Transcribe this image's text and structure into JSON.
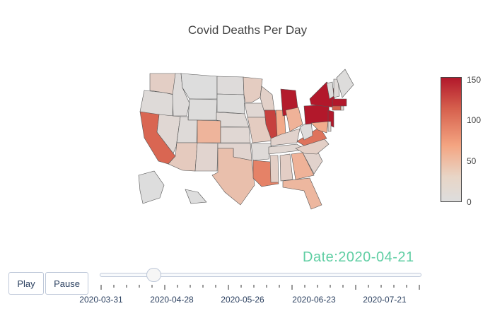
{
  "chart_data": {
    "type": "choropleth",
    "title": "Covid Deaths Per Day",
    "current_date": "2020-04-21",
    "date_label": "Date:2020-04-21",
    "colorbar": {
      "min": 0,
      "max": 150,
      "ticks": [
        "150",
        "100",
        "50",
        "0"
      ],
      "colorscale": [
        "#dddddd",
        "#f4a582",
        "#d6604d",
        "#b2182b"
      ]
    },
    "states_values": {
      "WA": 14,
      "OR": 3,
      "CA": 95,
      "NV": 6,
      "ID": 2,
      "MT": 0,
      "WY": 1,
      "UT": 3,
      "AZ": 18,
      "NM": 8,
      "CO": 38,
      "ND": 2,
      "SD": 1,
      "NE": 4,
      "KS": 6,
      "OK": 8,
      "TX": 28,
      "MN": 16,
      "IA": 6,
      "MO": 16,
      "AR": 3,
      "LA": 76,
      "WI": 12,
      "IL": 121,
      "IN": 48,
      "MI": 148,
      "OH": 40,
      "KY": 10,
      "TN": 7,
      "MS": 13,
      "AL": 14,
      "GA": 40,
      "FL": 36,
      "SC": 10,
      "NC": 13,
      "VA": 86,
      "WV": 2,
      "PA": 150,
      "NY": 150,
      "NJ": 150,
      "MD": 46,
      "DE": 7,
      "CT": 100,
      "RI": 8,
      "MA": 150,
      "VT": 1,
      "NH": 3,
      "ME": 1,
      "AK": 0,
      "HI": 0
    }
  },
  "controls": {
    "play_label": "Play",
    "pause_label": "Pause"
  },
  "slider": {
    "current": "2020-04-21",
    "progress": 0.16,
    "tick_labels": [
      "2020-03-31",
      "2020-04-28",
      "2020-05-26",
      "2020-06-23",
      "2020-07-21"
    ]
  }
}
